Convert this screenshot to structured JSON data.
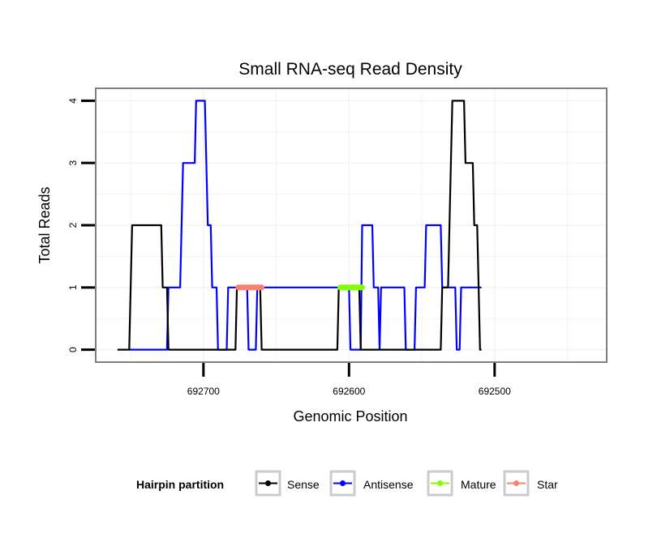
{
  "chart_data": {
    "type": "line",
    "title": "Small RNA-seq Read Density",
    "xlabel": "Genomic Position",
    "ylabel": "Total Reads",
    "x_reversed": true,
    "xlim": [
      692774,
      692423
    ],
    "ylim": [
      -0.2,
      4.2
    ],
    "xticks": [
      692700,
      692600,
      692500
    ],
    "xtick_labels": [
      "692700",
      "692600",
      692500
    ],
    "yticks": [
      0,
      1,
      2,
      3,
      4
    ],
    "ytick_labels": [
      "0",
      "1",
      "2",
      "3",
      "4"
    ],
    "grid": true,
    "legend": {
      "title": "Hairpin partition",
      "position": "bottom",
      "entries": [
        {
          "name": "Sense",
          "color": "#000000"
        },
        {
          "name": "Antisense",
          "color": "#0000ff"
        },
        {
          "name": "Mature",
          "color": "#7fff00"
        },
        {
          "name": "Star",
          "color": "#fa8072"
        }
      ]
    },
    "series": [
      {
        "name": "Sense",
        "color": "#000000",
        "points": [
          [
            692759,
            0
          ],
          [
            692751,
            0
          ],
          [
            692750,
            1
          ],
          [
            692749,
            2
          ],
          [
            692729,
            2
          ],
          [
            692728,
            1
          ],
          [
            692725,
            1
          ],
          [
            692724,
            0
          ],
          [
            692678,
            0
          ],
          [
            692677,
            1
          ],
          [
            692661,
            1
          ],
          [
            692660,
            0
          ],
          [
            692608,
            0
          ],
          [
            692607,
            1
          ],
          [
            692593,
            1
          ],
          [
            692592,
            0
          ],
          [
            692537,
            0
          ],
          [
            692536,
            1
          ],
          [
            692532,
            1
          ],
          [
            692530,
            3
          ],
          [
            692529,
            4
          ],
          [
            692521,
            4
          ],
          [
            692520,
            3
          ],
          [
            692515,
            3
          ],
          [
            692514,
            2
          ],
          [
            692512,
            2
          ],
          [
            692511,
            1
          ],
          [
            692510,
            0
          ],
          [
            692509,
            0
          ]
        ]
      },
      {
        "name": "Antisense",
        "color": "#0000ff",
        "points": [
          [
            692751,
            0
          ],
          [
            692725,
            0
          ],
          [
            692724,
            1
          ],
          [
            692716,
            1
          ],
          [
            692715,
            2
          ],
          [
            692714,
            3
          ],
          [
            692706,
            3
          ],
          [
            692705,
            4
          ],
          [
            692699,
            4
          ],
          [
            692698,
            3
          ],
          [
            692697,
            2
          ],
          [
            692695,
            2
          ],
          [
            692694,
            1
          ],
          [
            692691,
            1
          ],
          [
            692690,
            0
          ],
          [
            692684,
            0
          ],
          [
            692683,
            1
          ],
          [
            692670,
            1
          ],
          [
            692669,
            0
          ],
          [
            692664,
            0
          ],
          [
            692663,
            1
          ],
          [
            692600,
            1
          ],
          [
            692599,
            0
          ],
          [
            692592,
            0
          ],
          [
            692591,
            2
          ],
          [
            692584,
            2
          ],
          [
            692583,
            1
          ],
          [
            692580,
            1
          ],
          [
            692579,
            0
          ],
          [
            692578,
            1
          ],
          [
            692562,
            1
          ],
          [
            692561,
            0
          ],
          [
            692555,
            0
          ],
          [
            692554,
            1
          ],
          [
            692548,
            1
          ],
          [
            692547,
            2
          ],
          [
            692537,
            2
          ],
          [
            692536,
            1
          ],
          [
            692527,
            1
          ],
          [
            692526,
            0
          ],
          [
            692524,
            0
          ],
          [
            692523,
            1
          ],
          [
            692509,
            1
          ]
        ]
      },
      {
        "name": "Mature",
        "color": "#7fff00",
        "points": [
          [
            692606,
            1
          ],
          [
            692591,
            1
          ]
        ]
      },
      {
        "name": "Star",
        "color": "#fa8072",
        "points": [
          [
            692676,
            1
          ],
          [
            692660,
            1
          ]
        ]
      }
    ]
  }
}
